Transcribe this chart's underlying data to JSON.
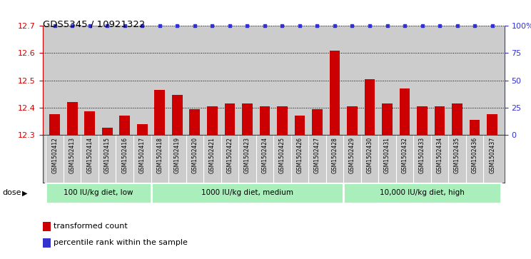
{
  "title": "GDS5345 / 10921322",
  "categories": [
    "GSM1502412",
    "GSM1502413",
    "GSM1502414",
    "GSM1502415",
    "GSM1502416",
    "GSM1502417",
    "GSM1502418",
    "GSM1502419",
    "GSM1502420",
    "GSM1502421",
    "GSM1502422",
    "GSM1502423",
    "GSM1502424",
    "GSM1502425",
    "GSM1502426",
    "GSM1502427",
    "GSM1502428",
    "GSM1502429",
    "GSM1502430",
    "GSM1502431",
    "GSM1502432",
    "GSM1502433",
    "GSM1502434",
    "GSM1502435",
    "GSM1502436",
    "GSM1502437"
  ],
  "bar_values": [
    12.375,
    12.42,
    12.385,
    12.325,
    12.37,
    12.34,
    12.465,
    12.445,
    12.395,
    12.405,
    12.415,
    12.415,
    12.405,
    12.405,
    12.37,
    12.395,
    12.61,
    12.405,
    12.505,
    12.415,
    12.47,
    12.405,
    12.405,
    12.415,
    12.355,
    12.375
  ],
  "bar_color": "#cc0000",
  "percentile_color": "#3333cc",
  "ylim_left": [
    12.3,
    12.7
  ],
  "ylim_right": [
    0,
    100
  ],
  "yticks_left": [
    12.3,
    12.4,
    12.5,
    12.6,
    12.7
  ],
  "yticks_right": [
    0,
    25,
    50,
    75,
    100
  ],
  "ytick_labels_right": [
    "0",
    "25",
    "50",
    "75",
    "100%"
  ],
  "groups": [
    {
      "label": "100 IU/kg diet, low",
      "start": 0,
      "end": 6
    },
    {
      "label": "1000 IU/kg diet, medium",
      "start": 6,
      "end": 17
    },
    {
      "label": "10,000 IU/kg diet, high",
      "start": 17,
      "end": 26
    }
  ],
  "group_color_light": "#aaeebb",
  "group_color_dark": "#55cc77",
  "dose_label": "dose",
  "legend_items": [
    {
      "label": "transformed count",
      "color": "#cc0000"
    },
    {
      "label": "percentile rank within the sample",
      "color": "#3333cc"
    }
  ],
  "background_color": "#cccccc",
  "xtick_bg": "#cccccc"
}
